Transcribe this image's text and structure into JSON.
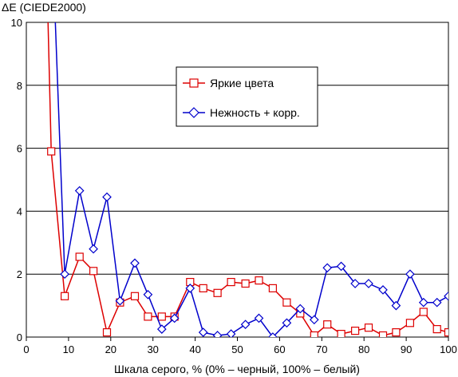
{
  "chart_data": {
    "type": "line",
    "title": "",
    "ylabel": "ΔE (CIEDE2000)",
    "xlabel": "Шкала серого, % (0% – черный, 100% – белый)",
    "xlim": [
      0,
      100
    ],
    "ylim": [
      0,
      10
    ],
    "xticks": [
      0,
      10,
      20,
      30,
      40,
      50,
      60,
      70,
      80,
      90,
      100
    ],
    "yticks": [
      0,
      2,
      4,
      6,
      8,
      10
    ],
    "grid": "horizontal",
    "legend_position": "center-right",
    "series": [
      {
        "name": "Яркие цвета",
        "color": "#dd0000",
        "marker": "square",
        "x": [
          4.5,
          5.9,
          9.1,
          12.6,
          15.9,
          19.1,
          22.2,
          25.7,
          28.8,
          32.1,
          35.1,
          38.8,
          41.9,
          45.3,
          48.5,
          51.9,
          55.1,
          58.4,
          61.7,
          64.9,
          68.2,
          71.3,
          74.6,
          77.9,
          81.1,
          84.5,
          87.6,
          90.9,
          94.1,
          97.3,
          100
        ],
        "y": [
          13.5,
          5.9,
          1.3,
          2.55,
          2.1,
          0.15,
          1.1,
          1.3,
          0.65,
          0.65,
          0.65,
          1.75,
          1.55,
          1.4,
          1.75,
          1.7,
          1.8,
          1.55,
          1.1,
          0.75,
          0.05,
          0.4,
          0.1,
          0.2,
          0.3,
          0.05,
          0.15,
          0.45,
          0.8,
          0.25,
          0.15
        ]
      },
      {
        "name": "Нежность + корр.",
        "color": "#0000cc",
        "marker": "diamond",
        "x": [
          5.9,
          9.1,
          12.6,
          15.9,
          19.1,
          22.2,
          25.7,
          28.8,
          32.1,
          35.1,
          38.8,
          41.9,
          45.3,
          48.5,
          51.9,
          55.1,
          58.4,
          61.7,
          64.9,
          68.2,
          71.3,
          74.6,
          77.9,
          81.1,
          84.5,
          87.6,
          90.9,
          94.1,
          97.3,
          100
        ],
        "y": [
          13.5,
          2.0,
          4.65,
          2.8,
          4.45,
          1.15,
          2.35,
          1.35,
          0.25,
          0.6,
          1.55,
          0.15,
          0.05,
          0.1,
          0.4,
          0.6,
          0.0,
          0.45,
          0.9,
          0.55,
          2.2,
          2.25,
          1.7,
          1.7,
          1.5,
          1.0,
          2.0,
          1.1,
          1.1,
          1.3
        ]
      }
    ]
  }
}
